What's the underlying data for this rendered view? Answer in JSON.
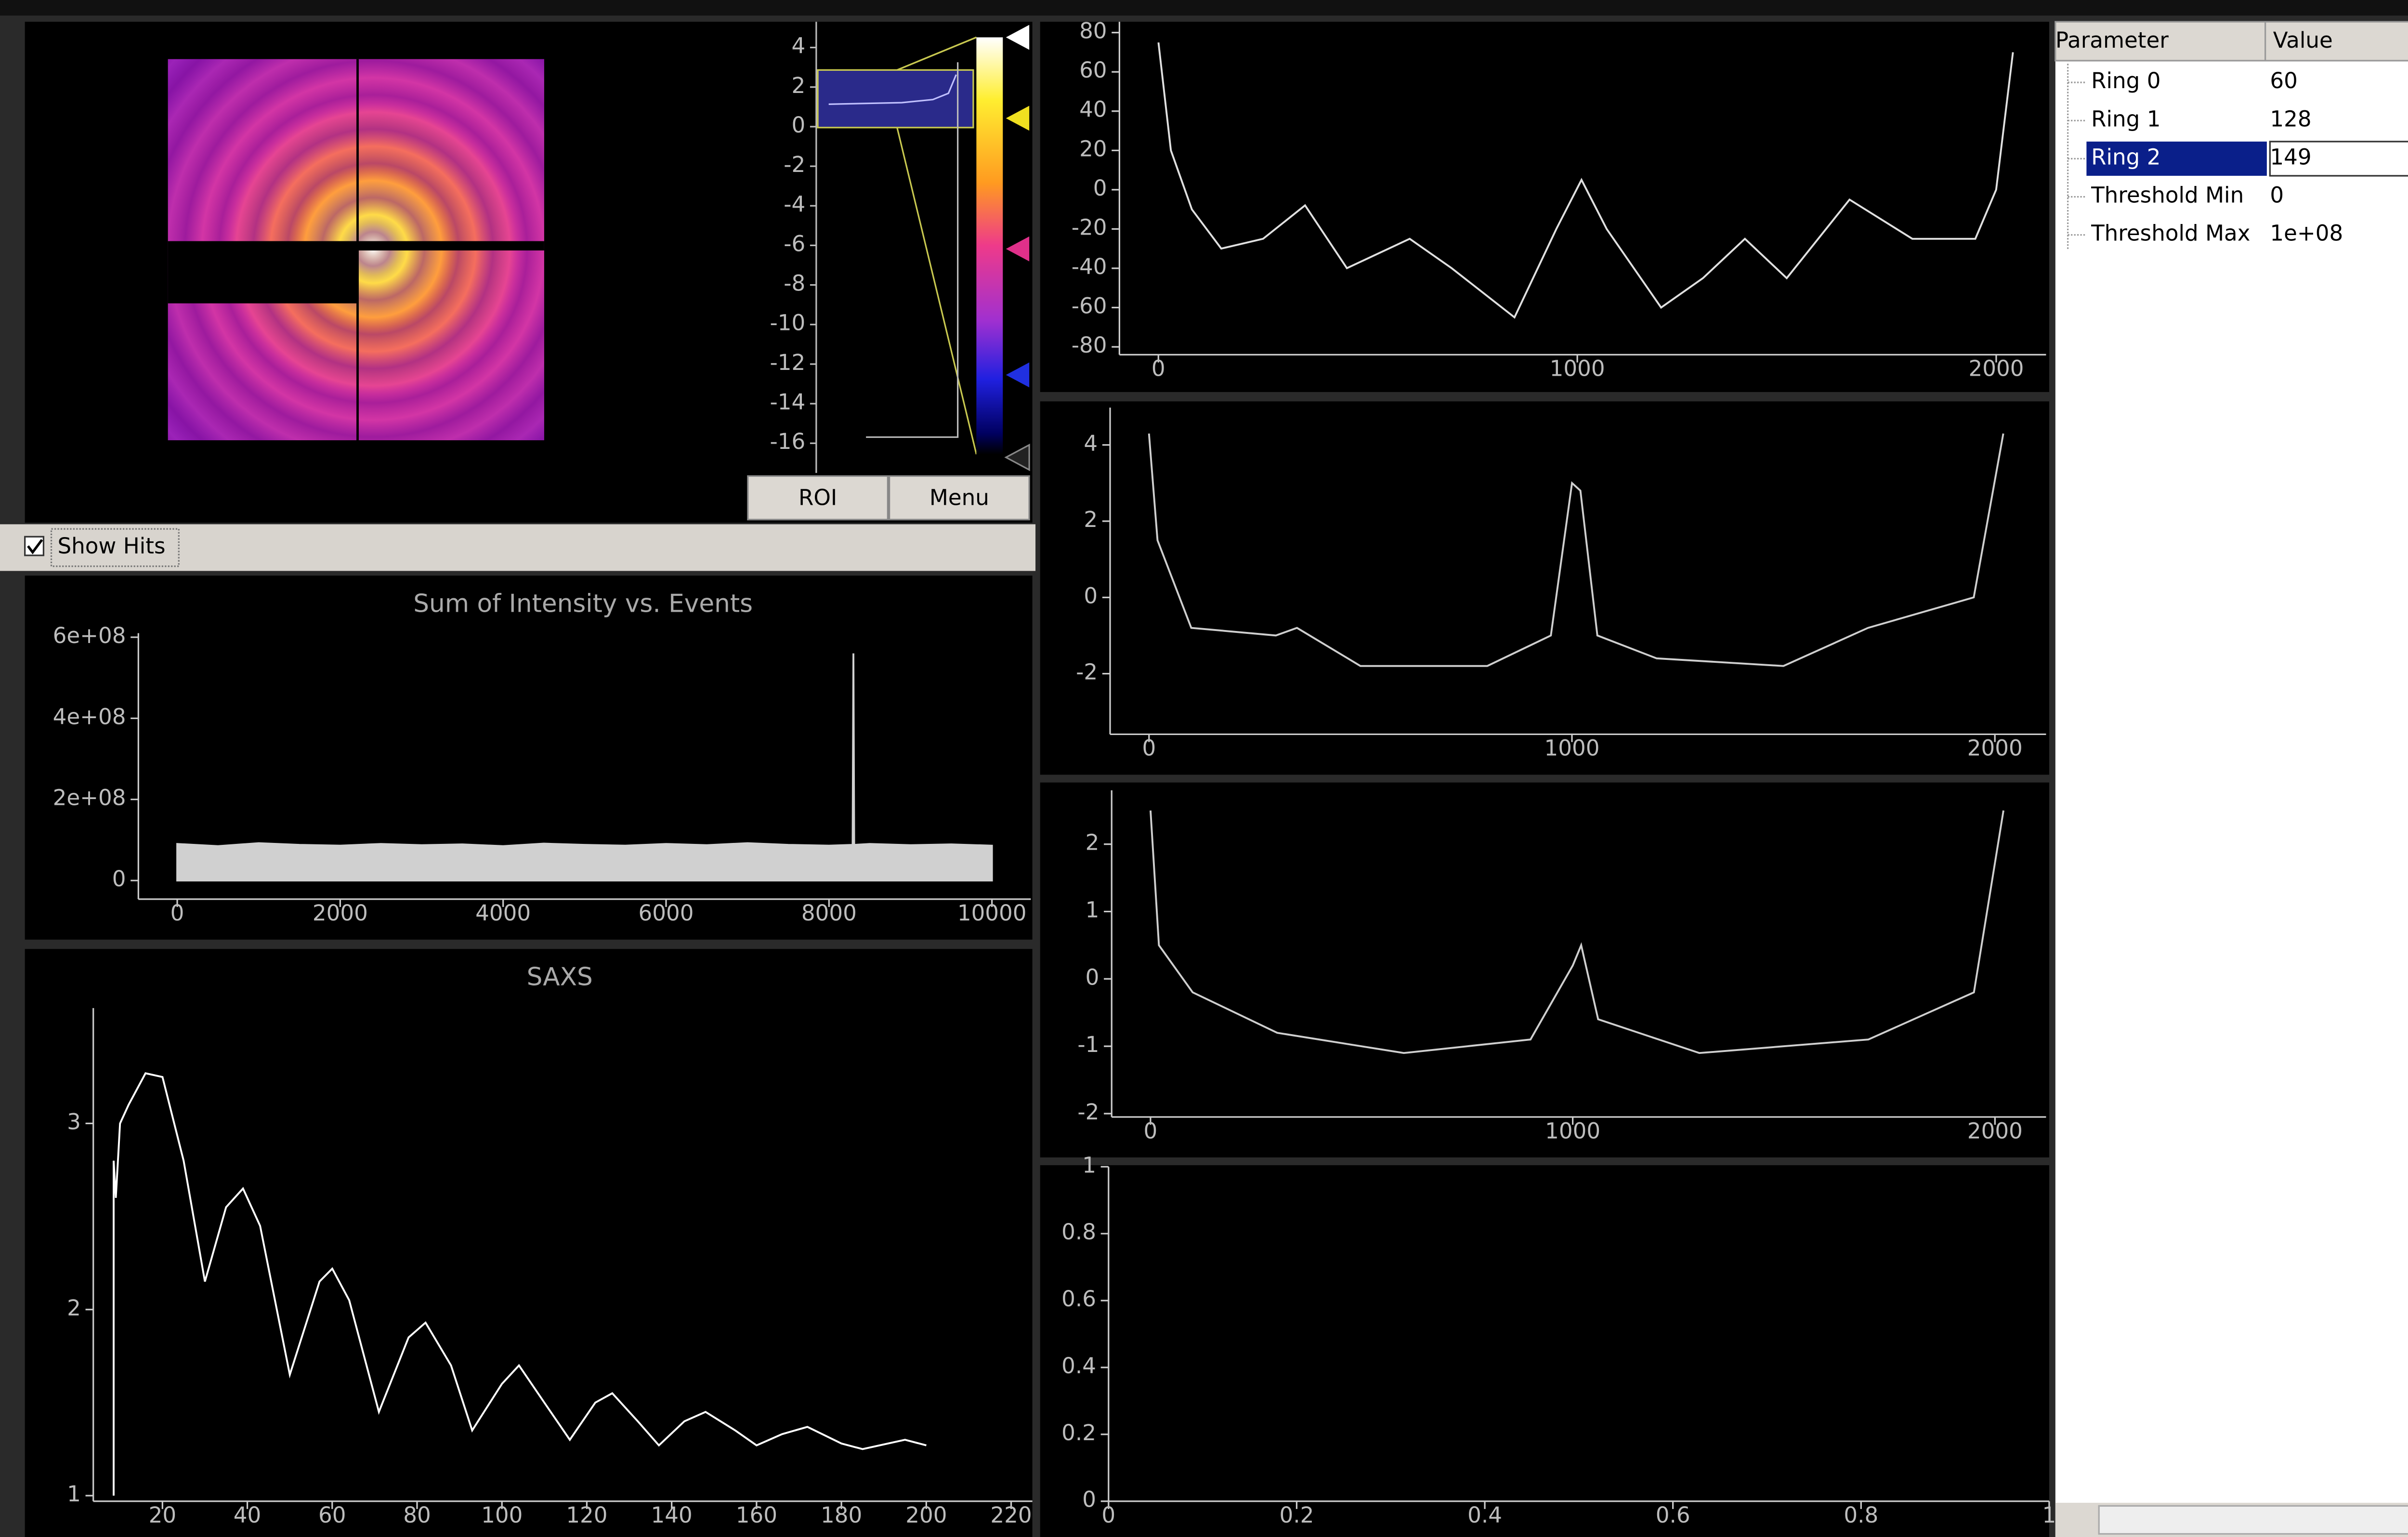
{
  "image_panel": {
    "colorbar_lim": [
      -17.5,
      5.3
    ],
    "colorbar_ticks": [
      4,
      2,
      0,
      -2,
      -4,
      -6,
      -8,
      -10,
      -12,
      -14,
      -16
    ],
    "buttons": [
      "ROI",
      "Menu"
    ]
  },
  "show_hits": "Show Hits",
  "chart_data": [
    {
      "type": "area",
      "title": "Sum of Intensity vs. Events",
      "color": "#d0d0d0",
      "xlim": [
        -477,
        10477
      ],
      "ylim": [
        -46000000,
        610000000
      ],
      "xticks": [
        0,
        2000,
        4000,
        6000,
        8000,
        10000
      ],
      "yticks": [
        {
          "value": 600000000,
          "label": "6e+08"
        },
        {
          "value": 400000000,
          "label": "4e+08"
        },
        {
          "value": 200000000,
          "label": "2e+08"
        },
        0
      ],
      "series": [
        {
          "x": [
            0,
            500,
            1000,
            1500,
            2000,
            2500,
            3000,
            3500,
            4000,
            4500,
            5000,
            5500,
            6000,
            6500,
            7000,
            7500,
            8000,
            8290,
            8300,
            8310,
            8500,
            9000,
            9500,
            10000
          ],
          "values": [
            90000000,
            85000000,
            92000000,
            88000000,
            86000000,
            90000000,
            87000000,
            89000000,
            85000000,
            91000000,
            88000000,
            86000000,
            90000000,
            87000000,
            92000000,
            88000000,
            86000000,
            88000000,
            560000000,
            88000000,
            90000000,
            87000000,
            89000000,
            86000000
          ]
        }
      ]
    },
    {
      "type": "line",
      "title": "SAXS",
      "color": "#ffffff",
      "xlim": [
        3.7,
        225
      ],
      "ylim": [
        0.97,
        3.62
      ],
      "xticks": [
        20,
        40,
        60,
        80,
        100,
        120,
        140,
        160,
        180,
        200,
        220
      ],
      "yticks": [
        3,
        2,
        1
      ],
      "series": [
        {
          "x": [
            8.5,
            8.5,
            9,
            10,
            12,
            16,
            20,
            25,
            30,
            35,
            39,
            43,
            50,
            57,
            60,
            64,
            71,
            78,
            82,
            88,
            93,
            100,
            104,
            110,
            116,
            122,
            126,
            132,
            137,
            143,
            148,
            155,
            160,
            166,
            172,
            180,
            185,
            195,
            200
          ],
          "values": [
            1,
            2.8,
            2.6,
            3,
            3.1,
            3.27,
            3.25,
            2.8,
            2.15,
            2.55,
            2.65,
            2.45,
            1.65,
            2.15,
            2.22,
            2.05,
            1.45,
            1.85,
            1.93,
            1.7,
            1.35,
            1.6,
            1.7,
            1.5,
            1.3,
            1.5,
            1.55,
            1.4,
            1.27,
            1.4,
            1.45,
            1.35,
            1.27,
            1.33,
            1.37,
            1.28,
            1.25,
            1.3,
            1.27
          ]
        }
      ]
    },
    {
      "type": "line",
      "color": "#e0e0e0",
      "xlim": [
        -93,
        2119
      ],
      "ylim": [
        -84,
        85.5
      ],
      "xticks": [
        0,
        1000,
        2000
      ],
      "yticks": [
        80,
        60,
        40,
        20,
        0,
        -20,
        -40,
        -60,
        -80
      ],
      "series": [
        {
          "x": [
            0,
            30,
            80,
            150,
            250,
            350,
            450,
            600,
            700,
            850,
            950,
            1010,
            1070,
            1200,
            1300,
            1400,
            1500,
            1650,
            1800,
            1950,
            2000,
            2040
          ],
          "values": [
            75,
            20,
            -10,
            -30,
            -25,
            -8,
            -40,
            -25,
            -40,
            -65,
            -20,
            5,
            -20,
            -60,
            -45,
            -25,
            -45,
            -5,
            -25,
            -25,
            0,
            70
          ]
        }
      ]
    },
    {
      "type": "line",
      "color": "#cfcfcf",
      "xlim": [
        -92,
        2121
      ],
      "ylim": [
        -3.59,
        4.98
      ],
      "xticks": [
        0,
        1000,
        2000
      ],
      "yticks": [
        4,
        2,
        0,
        -2
      ],
      "series": [
        {
          "x": [
            0,
            20,
            100,
            300,
            350,
            500,
            800,
            950,
            1000,
            1020,
            1060,
            1200,
            1500,
            1700,
            1950,
            2020
          ],
          "values": [
            4.3,
            1.5,
            -0.8,
            -1,
            -0.8,
            -1.8,
            -1.8,
            -1,
            3,
            2.8,
            -1,
            -1.6,
            -1.8,
            -0.8,
            0,
            4.3
          ]
        }
      ]
    },
    {
      "type": "line",
      "color": "#cfcfcf",
      "xlim": [
        -92,
        2121
      ],
      "ylim": [
        -2.05,
        2.8
      ],
      "xticks": [
        0,
        1000,
        2000
      ],
      "yticks": [
        2,
        1,
        0,
        -1,
        -2
      ],
      "series": [
        {
          "x": [
            0,
            20,
            100,
            300,
            600,
            900,
            1000,
            1020,
            1060,
            1300,
            1700,
            1950,
            2020
          ],
          "values": [
            2.5,
            0.5,
            -0.2,
            -0.8,
            -1.1,
            -0.9,
            0.2,
            0.5,
            -0.6,
            -1.1,
            -0.9,
            -0.2,
            2.5
          ]
        }
      ]
    },
    {
      "type": "line",
      "xlim": [
        0,
        1.0
      ],
      "ylim": [
        0,
        1
      ],
      "xticks": [
        0,
        0.2,
        0.4,
        0.6,
        0.8,
        1
      ],
      "yticks": [
        0,
        0.2,
        0.4,
        0.6,
        0.8,
        1
      ]
    }
  ],
  "parameter_table": {
    "headers": [
      "Parameter",
      "Value"
    ],
    "rows": [
      [
        "Ring 0",
        "60"
      ],
      [
        "Ring 1",
        "128"
      ],
      [
        "Ring 2",
        "149"
      ],
      [
        "Threshold Min",
        "0"
      ],
      [
        "Threshold Max",
        "1e+08"
      ]
    ]
  }
}
